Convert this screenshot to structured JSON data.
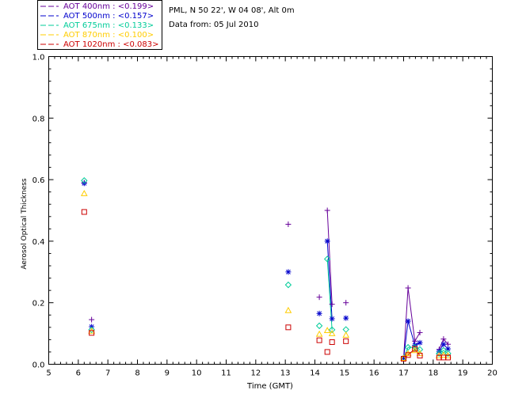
{
  "chart_data": {
    "type": "scatter",
    "station": "PML, N 50 22', W 04 08', Alt 0m",
    "date_line": "Data from: 05 Jul 2010",
    "xlabel": "Time (GMT)",
    "ylabel": "Aerosol Optical Thickness",
    "xlim": [
      5,
      20
    ],
    "ylim": [
      0,
      1.0
    ],
    "xticks": [
      "5",
      "6",
      "7",
      "8",
      "9",
      "10",
      "11",
      "12",
      "13",
      "14",
      "15",
      "16",
      "17",
      "18",
      "19",
      "20"
    ],
    "yticks": [
      "0.0",
      "0.2",
      "0.4",
      "0.6",
      "0.8",
      "1.0"
    ],
    "legend_position": "top-left",
    "series": [
      {
        "name": "AOT  400nm : <0.199>",
        "color": "#660099",
        "marker": "plus",
        "points": [
          [
            6.2,
            0.59
          ],
          [
            6.45,
            0.145
          ],
          [
            13.1,
            0.455
          ],
          [
            14.15,
            0.218
          ],
          [
            14.42,
            0.5
          ],
          [
            14.58,
            0.195
          ],
          [
            15.05,
            0.2
          ],
          [
            17.0,
            0.02
          ],
          [
            17.15,
            0.248
          ],
          [
            17.38,
            0.075
          ],
          [
            17.55,
            0.103
          ],
          [
            18.2,
            0.048
          ],
          [
            18.35,
            0.082
          ],
          [
            18.5,
            0.065
          ]
        ],
        "lines": [
          [
            [
              14.42,
              0.5
            ],
            [
              14.58,
              0.195
            ]
          ],
          [
            [
              17.0,
              0.02
            ],
            [
              17.15,
              0.248
            ],
            [
              17.38,
              0.075
            ],
            [
              17.55,
              0.103
            ]
          ],
          [
            [
              18.2,
              0.048
            ],
            [
              18.35,
              0.082
            ],
            [
              18.5,
              0.065
            ]
          ]
        ]
      },
      {
        "name": "AOT  500nm : <0.157>",
        "color": "#0000cc",
        "marker": "star",
        "points": [
          [
            6.2,
            0.588
          ],
          [
            6.45,
            0.122
          ],
          [
            13.1,
            0.3
          ],
          [
            14.15,
            0.165
          ],
          [
            14.42,
            0.4
          ],
          [
            14.58,
            0.148
          ],
          [
            15.05,
            0.15
          ],
          [
            17.0,
            0.02
          ],
          [
            17.15,
            0.14
          ],
          [
            17.38,
            0.062
          ],
          [
            17.55,
            0.07
          ],
          [
            18.2,
            0.042
          ],
          [
            18.35,
            0.065
          ],
          [
            18.5,
            0.05
          ]
        ],
        "lines": [
          [
            [
              14.42,
              0.4
            ],
            [
              14.58,
              0.148
            ]
          ],
          [
            [
              17.0,
              0.02
            ],
            [
              17.15,
              0.14
            ],
            [
              17.38,
              0.062
            ],
            [
              17.55,
              0.07
            ]
          ],
          [
            [
              18.2,
              0.042
            ],
            [
              18.35,
              0.065
            ],
            [
              18.5,
              0.05
            ]
          ]
        ]
      },
      {
        "name": "AOT  675nm : <0.133>",
        "color": "#00cc99",
        "marker": "diamond",
        "points": [
          [
            6.2,
            0.597
          ],
          [
            6.45,
            0.112
          ],
          [
            13.1,
            0.258
          ],
          [
            14.15,
            0.125
          ],
          [
            14.42,
            0.342
          ],
          [
            14.58,
            0.112
          ],
          [
            15.05,
            0.113
          ],
          [
            17.0,
            0.02
          ],
          [
            17.15,
            0.055
          ],
          [
            17.38,
            0.055
          ],
          [
            17.55,
            0.048
          ],
          [
            18.2,
            0.035
          ],
          [
            18.35,
            0.045
          ],
          [
            18.5,
            0.035
          ]
        ],
        "lines": [
          [
            [
              14.42,
              0.342
            ],
            [
              14.58,
              0.112
            ]
          ],
          [
            [
              17.0,
              0.02
            ],
            [
              17.15,
              0.055
            ],
            [
              17.38,
              0.055
            ],
            [
              17.55,
              0.048
            ]
          ],
          [
            [
              18.2,
              0.035
            ],
            [
              18.35,
              0.045
            ],
            [
              18.5,
              0.035
            ]
          ]
        ]
      },
      {
        "name": "AOT  870nm : <0.100>",
        "color": "#ffcc00",
        "marker": "triangle",
        "points": [
          [
            6.2,
            0.555
          ],
          [
            6.45,
            0.108
          ],
          [
            13.1,
            0.175
          ],
          [
            14.15,
            0.098
          ],
          [
            14.42,
            0.11
          ],
          [
            14.58,
            0.1
          ],
          [
            15.05,
            0.095
          ],
          [
            17.0,
            0.02
          ],
          [
            17.15,
            0.035
          ],
          [
            17.38,
            0.045
          ],
          [
            17.55,
            0.035
          ],
          [
            18.2,
            0.028
          ],
          [
            18.35,
            0.03
          ],
          [
            18.5,
            0.028
          ]
        ],
        "lines": [
          [
            [
              17.0,
              0.02
            ],
            [
              17.15,
              0.035
            ],
            [
              17.38,
              0.045
            ],
            [
              17.55,
              0.035
            ]
          ]
        ]
      },
      {
        "name": "AOT 1020nm : <0.083>",
        "color": "#cc0000",
        "marker": "square",
        "points": [
          [
            6.2,
            0.495
          ],
          [
            6.45,
            0.102
          ],
          [
            13.1,
            0.12
          ],
          [
            14.15,
            0.078
          ],
          [
            14.42,
            0.04
          ],
          [
            14.58,
            0.072
          ],
          [
            15.05,
            0.075
          ],
          [
            17.0,
            0.018
          ],
          [
            17.15,
            0.03
          ],
          [
            17.38,
            0.05
          ],
          [
            17.55,
            0.028
          ],
          [
            18.2,
            0.022
          ],
          [
            18.35,
            0.022
          ],
          [
            18.5,
            0.022
          ]
        ],
        "lines": [
          [
            [
              17.0,
              0.018
            ],
            [
              17.15,
              0.03
            ],
            [
              17.38,
              0.05
            ],
            [
              17.55,
              0.028
            ]
          ]
        ]
      }
    ]
  }
}
